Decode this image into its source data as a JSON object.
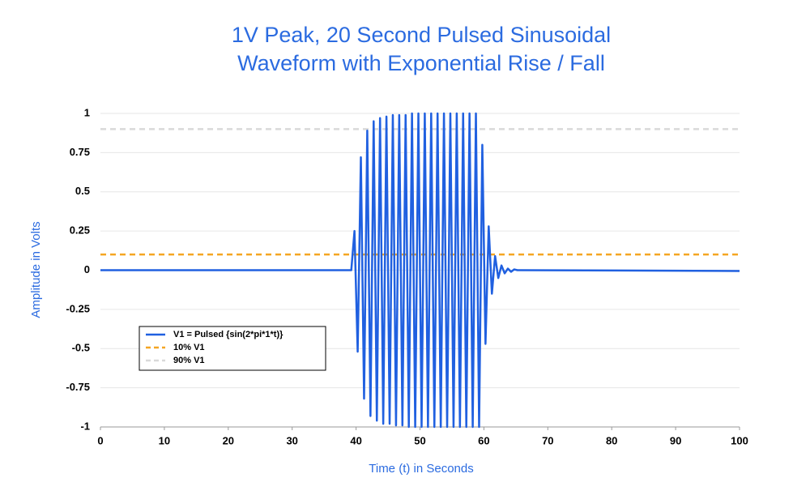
{
  "chart_data": {
    "type": "line",
    "title": "1V Peak, 20 Second  Pulsed Sinusoidal",
    "subtitle": "Waveform with  Exponential Rise / Fall",
    "x_label": "Time (t) in Seconds",
    "y_label": "Amplitude in Volts",
    "xlim": [
      0,
      100
    ],
    "xticks": [
      0,
      10,
      20,
      30,
      40,
      50,
      60,
      70,
      80,
      90,
      100
    ],
    "ylim": [
      -1,
      1
    ],
    "yticks": [
      1,
      0.75,
      0.5,
      0.25,
      0,
      -0.25,
      -0.5,
      -0.75,
      -1
    ],
    "grid": true,
    "legend": "lower-left",
    "series": [
      {
        "name": "V1 = Pulsed {sin(2*pi*1*t)}",
        "color": "#2060e0",
        "dash": "solid",
        "x": [
          0,
          39.25,
          39.75,
          40.25,
          40.75,
          41.25,
          41.75,
          42.25,
          42.75,
          43.25,
          43.75,
          44.25,
          44.75,
          45.25,
          45.75,
          46.25,
          46.75,
          47.25,
          47.75,
          48.25,
          48.75,
          49.25,
          49.75,
          50.25,
          50.75,
          51.25,
          51.75,
          52.25,
          52.75,
          53.25,
          53.75,
          54.25,
          54.75,
          55.25,
          55.75,
          56.25,
          56.75,
          57.25,
          57.75,
          58.25,
          58.75,
          59.25,
          59.75,
          60.25,
          60.75,
          61.25,
          61.75,
          62.25,
          62.75,
          63.25,
          63.75,
          64.25,
          64.75,
          65.25,
          65.75,
          100
        ],
        "values": [
          0,
          0,
          0.25,
          -0.52,
          0.72,
          -0.82,
          0.89,
          -0.93,
          0.95,
          -0.96,
          0.97,
          -0.98,
          0.98,
          -0.98,
          0.99,
          -0.99,
          0.99,
          -0.99,
          0.99,
          -1,
          1,
          -1,
          1,
          -1,
          1,
          -1,
          1,
          -1,
          1,
          -1,
          1,
          -1,
          1,
          -1,
          1,
          -1,
          1,
          -1,
          1,
          -1,
          1,
          -1,
          0.8,
          -0.47,
          0.28,
          -0.15,
          0.09,
          -0.05,
          0.03,
          -0.02,
          0.01,
          -0.01,
          0.005,
          0,
          0,
          -0.005
        ]
      },
      {
        "name": "10% V1",
        "color": "#f5a623",
        "dash": "dashed",
        "x": [
          0,
          100
        ],
        "values": [
          0.1,
          0.1
        ]
      },
      {
        "name": "90% V1",
        "color": "#d9d9d9",
        "dash": "dashed",
        "x": [
          0,
          100
        ],
        "values": [
          0.9,
          0.9
        ]
      }
    ]
  }
}
